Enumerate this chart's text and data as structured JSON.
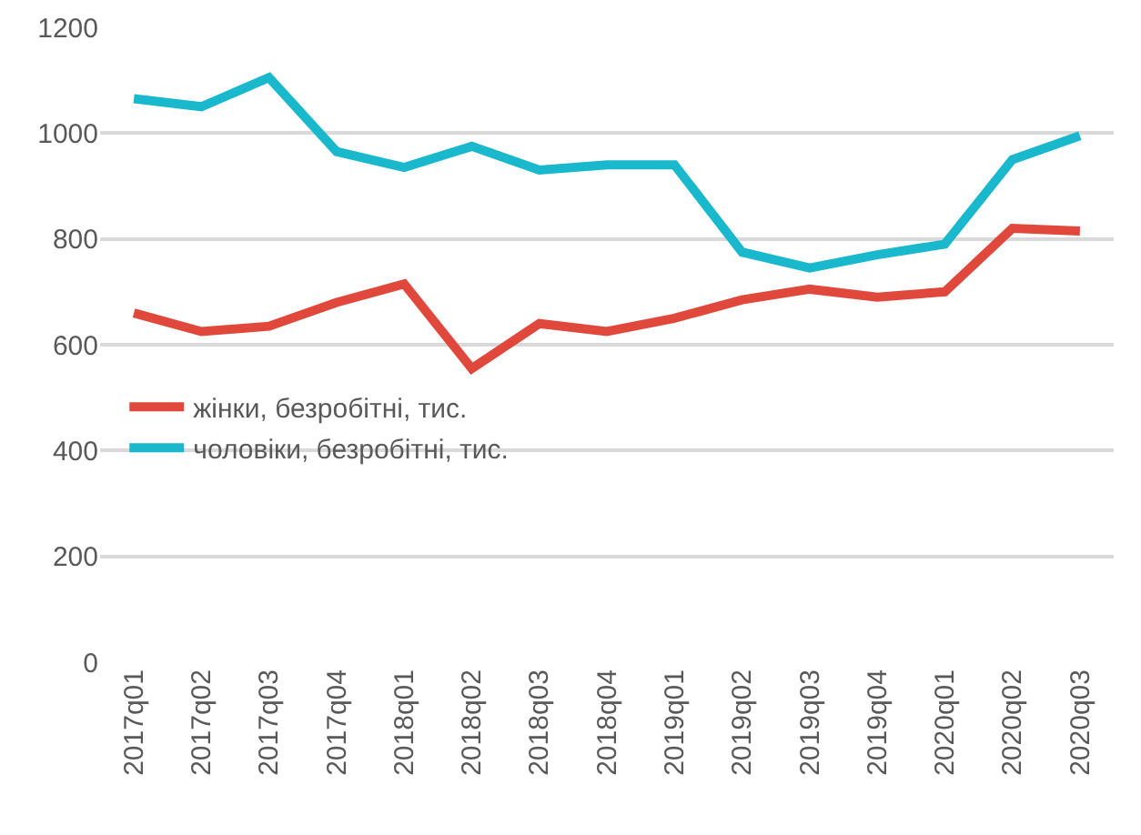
{
  "chart_data": {
    "type": "line",
    "categories": [
      "2017q01",
      "2017q02",
      "2017q03",
      "2017q04",
      "2018q01",
      "2018q02",
      "2018q03",
      "2018q04",
      "2019q01",
      "2019q02",
      "2019q03",
      "2019q04",
      "2020q01",
      "2020q02",
      "2020q03"
    ],
    "series": [
      {
        "name": "жінки, безробітні, тис.",
        "color": "#e0483c",
        "values": [
          660,
          625,
          635,
          680,
          715,
          555,
          640,
          625,
          650,
          685,
          705,
          690,
          700,
          820,
          815
        ]
      },
      {
        "name": "чоловіки, безробітні, тис.",
        "color": "#1ab8cc",
        "values": [
          1065,
          1050,
          1105,
          965,
          935,
          975,
          930,
          940,
          940,
          775,
          745,
          770,
          790,
          950,
          995
        ]
      }
    ],
    "ylim": [
      0,
      1200
    ],
    "yticks": [
      0,
      200,
      400,
      600,
      800,
      1000,
      1200
    ],
    "grid": "y",
    "legend": "left",
    "marker": "none",
    "line_style": "solid"
  }
}
